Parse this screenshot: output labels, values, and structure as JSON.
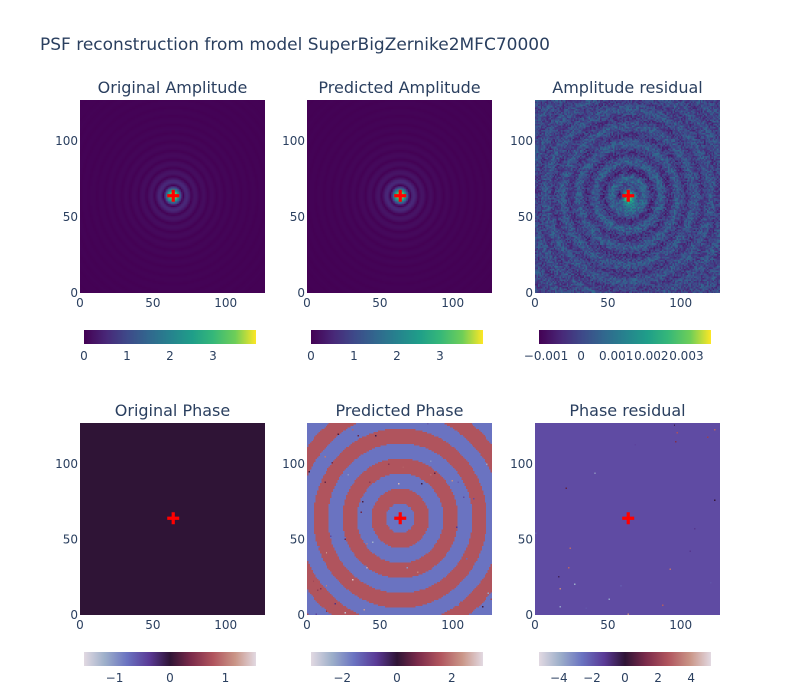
{
  "title": "PSF reconstruction from model SuperBigZernike2MFC70000",
  "chart_data": [
    {
      "type": "heatmap",
      "title": "Original Amplitude",
      "x_range": [
        0,
        127
      ],
      "y_range": [
        0,
        127
      ],
      "x_ticks": [
        "0",
        "50",
        "100"
      ],
      "y_ticks": [
        "0",
        "50",
        "100"
      ],
      "colorscale": "viridis",
      "colorbar": {
        "range": [
          0,
          4
        ],
        "ticks": [
          0,
          1,
          2,
          3
        ],
        "tick_labels": [
          "0",
          "1",
          "2",
          "3"
        ]
      },
      "marker": {
        "x": 64,
        "y": 64,
        "symbol": "cross",
        "color": "#ff0000"
      },
      "field": "airy",
      "peak_value": 3.9
    },
    {
      "type": "heatmap",
      "title": "Predicted Amplitude",
      "x_range": [
        0,
        127
      ],
      "y_range": [
        0,
        127
      ],
      "x_ticks": [
        "0",
        "50",
        "100"
      ],
      "y_ticks": [
        "0",
        "50",
        "100"
      ],
      "colorscale": "viridis",
      "colorbar": {
        "range": [
          0,
          4
        ],
        "ticks": [
          0,
          1,
          2,
          3
        ],
        "tick_labels": [
          "0",
          "1",
          "2",
          "3"
        ]
      },
      "marker": {
        "x": 64,
        "y": 64,
        "symbol": "cross",
        "color": "#ff0000"
      },
      "field": "airy",
      "peak_value": 3.9
    },
    {
      "type": "heatmap",
      "title": "Amplitude residual",
      "x_range": [
        0,
        127
      ],
      "y_range": [
        0,
        127
      ],
      "x_ticks": [
        "0",
        "50",
        "100"
      ],
      "y_ticks": [
        "0",
        "50",
        "100"
      ],
      "colorscale": "viridis",
      "colorbar": {
        "range": [
          -0.0012,
          0.0037
        ],
        "ticks": [
          -0.001,
          0,
          0.001,
          0.002,
          0.003
        ],
        "tick_labels": [
          "−0.001",
          "0",
          "0.001",
          "0.002",
          "0.003"
        ]
      },
      "marker": {
        "x": 64,
        "y": 64,
        "symbol": "cross",
        "color": "#ff0000"
      },
      "field": "residual"
    },
    {
      "type": "heatmap",
      "title": "Original Phase",
      "x_range": [
        0,
        127
      ],
      "y_range": [
        0,
        127
      ],
      "x_ticks": [
        "0",
        "50",
        "100"
      ],
      "y_ticks": [
        "0",
        "50",
        "100"
      ],
      "colorscale": "twilight",
      "colorbar": {
        "range": [
          -1.55,
          1.55
        ],
        "ticks": [
          -1,
          0,
          1
        ],
        "tick_labels": [
          "−1",
          "0",
          "1"
        ]
      },
      "marker": {
        "x": 64,
        "y": 64,
        "symbol": "cross",
        "color": "#ff0000"
      },
      "field": "constant",
      "constant_value": 0
    },
    {
      "type": "heatmap",
      "title": "Predicted Phase",
      "x_range": [
        0,
        127
      ],
      "y_range": [
        0,
        127
      ],
      "x_ticks": [
        "0",
        "50",
        "100"
      ],
      "y_ticks": [
        "0",
        "50",
        "100"
      ],
      "colorscale": "twilight",
      "colorbar": {
        "range": [
          -3.14,
          3.14
        ],
        "ticks": [
          -2,
          0,
          2
        ],
        "tick_labels": [
          "−2",
          "0",
          "2"
        ]
      },
      "marker": {
        "x": 64,
        "y": 64,
        "symbol": "cross",
        "color": "#ff0000"
      },
      "field": "rings",
      "ring_period": 20,
      "ring_values": [
        -1.57,
        1.57
      ]
    },
    {
      "type": "heatmap",
      "title": "Phase residual",
      "x_range": [
        0,
        127
      ],
      "y_range": [
        0,
        127
      ],
      "x_ticks": [
        "0",
        "50",
        "100"
      ],
      "y_ticks": [
        "0",
        "50",
        "100"
      ],
      "colorscale": "twilight",
      "colorbar": {
        "range": [
          -5.2,
          5.2
        ],
        "ticks": [
          -4,
          -2,
          0,
          2,
          4
        ],
        "tick_labels": [
          "−4",
          "−2",
          "0",
          "2",
          "4"
        ]
      },
      "marker": {
        "x": 64,
        "y": 64,
        "symbol": "cross",
        "color": "#ff0000"
      },
      "field": "sparse",
      "base_value": -1.65
    }
  ]
}
